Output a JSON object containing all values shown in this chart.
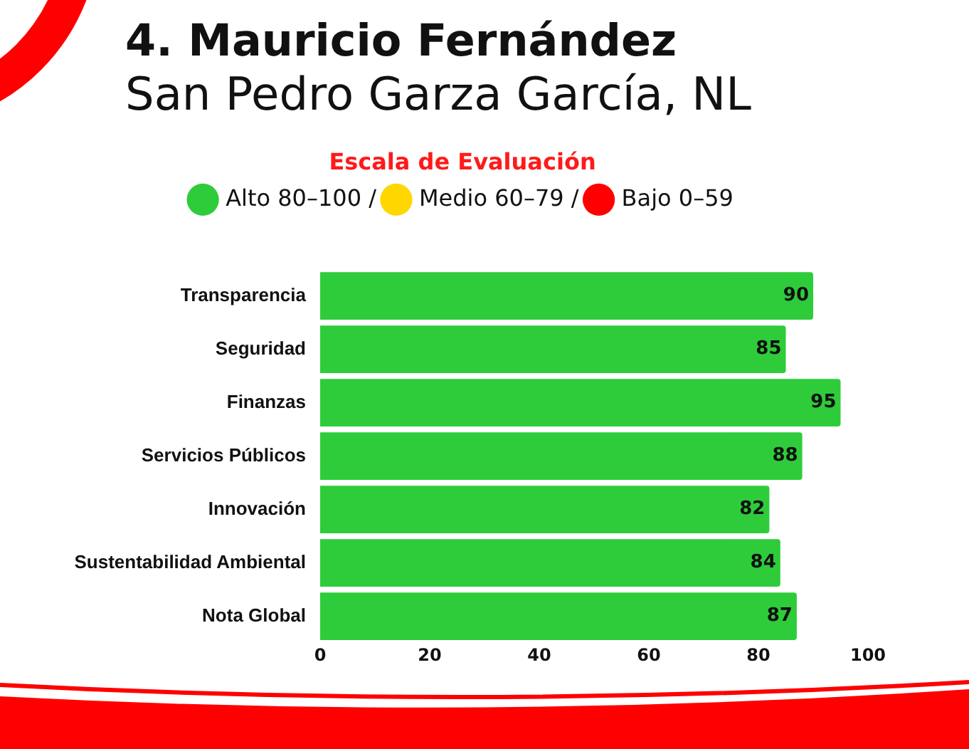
{
  "chart_data": {
    "type": "bar",
    "orientation": "horizontal",
    "title": "4. Mauricio Fernández",
    "subtitle": "San Pedro Garza García, NL",
    "legend_title": "Escala de Evaluación",
    "legend": "top",
    "categories": [
      "Transparencia",
      "Seguridad",
      "Finanzas",
      "Servicios Públicos",
      "Innovación",
      "Sustentabilidad Ambiental",
      "Nota Global"
    ],
    "series": [
      {
        "name": "Alto 80–100 /",
        "color": "#2ecc3a",
        "values": [
          90,
          85,
          95,
          88,
          82,
          84,
          87
        ]
      },
      {
        "name": "Medio 60–79 /",
        "color": "#ffd700",
        "values": [
          null,
          null,
          null,
          null,
          null,
          null,
          null
        ]
      },
      {
        "name": "Bajo 0–59",
        "color": "#ff0000",
        "values": [
          null,
          null,
          null,
          null,
          null,
          null,
          null
        ]
      }
    ],
    "xlim": [
      0,
      100
    ],
    "xticks": [
      0,
      20,
      40,
      60,
      80,
      100
    ],
    "data_labels": true
  }
}
